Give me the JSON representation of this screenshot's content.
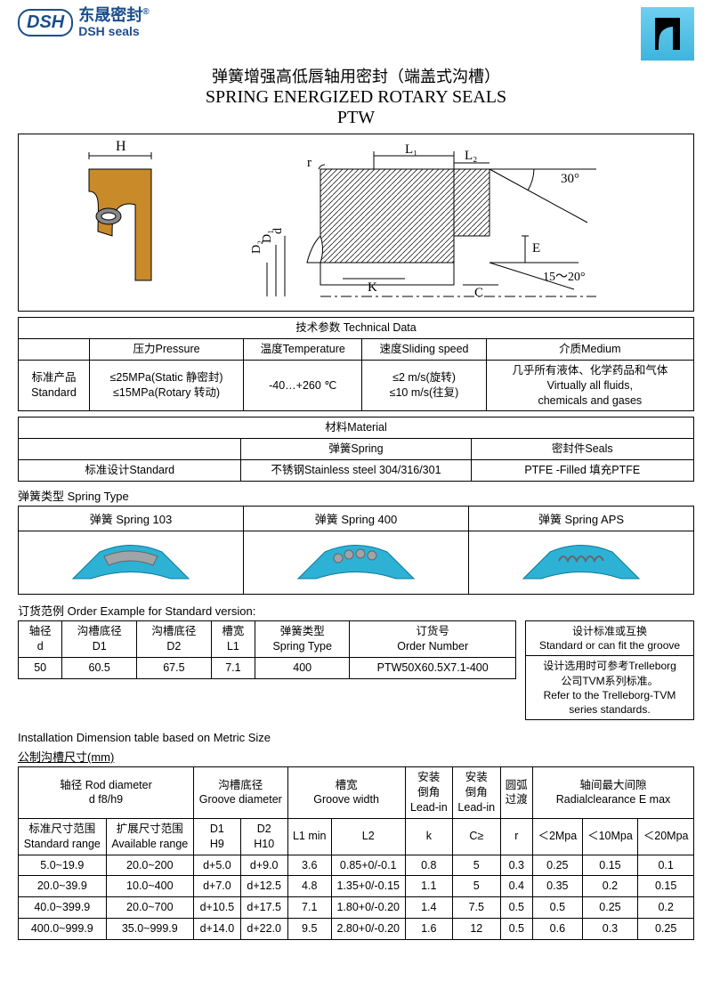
{
  "logo": {
    "badge": "DSH",
    "cn": "东晟密封",
    "en": "DSH seals",
    "reg": "®"
  },
  "titles": {
    "cn": "弹簧增强高低唇轴用密封（端盖式沟槽）",
    "en": "SPRING ENERGIZED ROTARY SEALS",
    "code": "PTW"
  },
  "diagram": {
    "labels": [
      "H",
      "L1",
      "L2",
      "r",
      "30°",
      "15～20°",
      "E",
      "C",
      "K",
      "d",
      "D1",
      "D2"
    ],
    "seal_color": "#c98a2a",
    "spring_color": "#5a5a5a",
    "angle1": 30,
    "angle2_low": 15,
    "angle2_high": 20
  },
  "tech": {
    "header": "技术参数 Technical Data",
    "cols": [
      "压力Pressure",
      "温度Temperature",
      "速度Sliding speed",
      "介质Medium"
    ],
    "row_label": "标准产品\nStandard",
    "pressure": "≤25MPa(Static 静密封)\n≤15MPa(Rotary 转动)",
    "temperature": "-40…+260 ℃",
    "speed": "≤2 m/s(旋转)\n≤10 m/s(往复)",
    "medium": "几乎所有液体、化学药品和气体\nVirtually all fluids,\nchemicals and gases"
  },
  "material": {
    "header": "材料Material",
    "cols": [
      "",
      "弹簧Spring",
      "密封件Seals"
    ],
    "row_label": "标准设计Standard",
    "spring": "不锈钢Stainless steel 304/316/301",
    "seals": "PTFE -Filled 填充PTFE"
  },
  "spring_type": {
    "label": "弹簧类型 Spring Type",
    "items": [
      "弹簧 Spring 103",
      "弹簧 Spring 400",
      "弹簧 Spring APS"
    ],
    "colors": {
      "body": "#2db2d6",
      "coil": "#9fa4a8"
    }
  },
  "order": {
    "label": "订货范例 Order Example for Standard version:",
    "cols": [
      "轴径\nd",
      "沟槽底径\nD1",
      "沟槽底径\nD2",
      "槽宽\nL1",
      "弹簧类型\nSpring Type",
      "订货号\nOrder Number"
    ],
    "row": [
      "50",
      "60.5",
      "67.5",
      "7.1",
      "400",
      "PTW50X60.5X7.1-400"
    ],
    "right_head": "设计标准或互换\nStandard or can fit the groove",
    "right_body": "设计选用时可参考Trelleborg\n公司TVM系列标准。\nRefer to the Trelleborg-TVM\nseries standards."
  },
  "dim": {
    "label_en": "Installation Dimension table based on Metric Size",
    "label_cn": "公制沟槽尺寸(mm)",
    "head1": [
      "轴径 Rod diameter\nd  f8/h9",
      "沟槽底径\nGroove diameter",
      "槽宽\nGroove width",
      "安装\n倒角\nLead-in",
      "安装\n倒角\nLead-in",
      "圆弧\n过渡",
      "轴间最大间隙\nRadialclearance E max"
    ],
    "head2": [
      "标准尺寸范围\nStandard range",
      "扩展尺寸范围\nAvailable range",
      "D1\nH9",
      "D2\nH10",
      "L1 min",
      "L2",
      "k",
      "C≥",
      "r",
      "＜2Mpa",
      "＜10Mpa",
      "＜20Mpa"
    ],
    "rows": [
      [
        "5.0~19.9",
        "20.0~200",
        "d+5.0",
        "d+9.0",
        "3.6",
        "0.85+0/-0.1",
        "0.8",
        "5",
        "0.3",
        "0.25",
        "0.15",
        "0.1"
      ],
      [
        "20.0~39.9",
        "10.0~400",
        "d+7.0",
        "d+12.5",
        "4.8",
        "1.35+0/-0.15",
        "1.1",
        "5",
        "0.4",
        "0.35",
        "0.2",
        "0.15"
      ],
      [
        "40.0~399.9",
        "20.0~700",
        "d+10.5",
        "d+17.5",
        "7.1",
        "1.80+0/-0.20",
        "1.4",
        "7.5",
        "0.5",
        "0.5",
        "0.25",
        "0.2"
      ],
      [
        "400.0~999.9",
        "35.0~999.9",
        "d+14.0",
        "d+22.0",
        "9.5",
        "2.80+0/-0.20",
        "1.6",
        "12",
        "0.5",
        "0.6",
        "0.3",
        "0.25"
      ]
    ]
  }
}
